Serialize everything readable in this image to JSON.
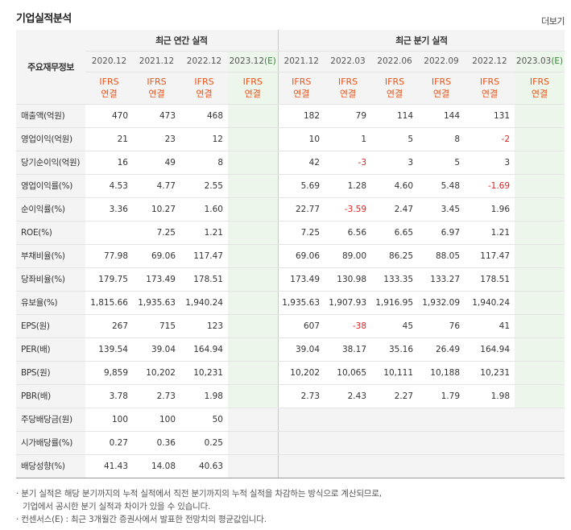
{
  "header": {
    "title": "기업실적분석",
    "more_label": "더보기"
  },
  "columns": {
    "corner_label": "주요재무정보",
    "annual_label": "최근 연간 실적",
    "quarter_label": "최근 분기 실적",
    "periods": [
      "2020.12",
      "2021.12",
      "2022.12",
      "2023.12",
      "2021.12",
      "2022.03",
      "2022.06",
      "2022.09",
      "2022.12",
      "2023.03"
    ],
    "estimate_suffix": "(E)",
    "ifrs_top": "IFRS",
    "ifrs_bottom": "연결"
  },
  "rows": [
    {
      "label": "매출액(억원)",
      "values": [
        "470",
        "473",
        "468",
        "",
        "182",
        "79",
        "114",
        "144",
        "131",
        ""
      ]
    },
    {
      "label": "영업이익(억원)",
      "values": [
        "21",
        "23",
        "12",
        "",
        "10",
        "1",
        "5",
        "8",
        "-2",
        ""
      ]
    },
    {
      "label": "당기순이익(억원)",
      "values": [
        "16",
        "49",
        "8",
        "",
        "42",
        "-3",
        "3",
        "5",
        "3",
        ""
      ]
    },
    {
      "label": "영업이익률(%)",
      "values": [
        "4.53",
        "4.77",
        "2.55",
        "",
        "5.69",
        "1.28",
        "4.60",
        "5.48",
        "-1.69",
        ""
      ]
    },
    {
      "label": "순이익률(%)",
      "values": [
        "3.36",
        "10.27",
        "1.60",
        "",
        "22.77",
        "-3.59",
        "2.47",
        "3.45",
        "1.96",
        ""
      ]
    },
    {
      "label": "ROE(%)",
      "values": [
        "",
        "7.25",
        "1.21",
        "",
        "7.25",
        "6.56",
        "6.65",
        "6.97",
        "1.21",
        ""
      ]
    },
    {
      "label": "부채비율(%)",
      "values": [
        "77.98",
        "69.06",
        "117.47",
        "",
        "69.06",
        "89.00",
        "86.25",
        "88.05",
        "117.47",
        ""
      ]
    },
    {
      "label": "당좌비율(%)",
      "values": [
        "179.75",
        "173.49",
        "178.51",
        "",
        "173.49",
        "130.98",
        "133.35",
        "133.27",
        "178.51",
        ""
      ]
    },
    {
      "label": "유보율(%)",
      "values": [
        "1,815.66",
        "1,935.63",
        "1,940.24",
        "",
        "1,935.63",
        "1,907.93",
        "1,916.95",
        "1,932.09",
        "1,940.24",
        ""
      ]
    },
    {
      "label": "EPS(원)",
      "values": [
        "267",
        "715",
        "123",
        "",
        "607",
        "-38",
        "45",
        "76",
        "41",
        ""
      ]
    },
    {
      "label": "PER(배)",
      "values": [
        "139.54",
        "39.04",
        "164.94",
        "",
        "39.04",
        "38.17",
        "35.16",
        "26.49",
        "164.94",
        ""
      ]
    },
    {
      "label": "BPS(원)",
      "values": [
        "9,859",
        "10,202",
        "10,231",
        "",
        "10,202",
        "10,065",
        "10,111",
        "10,188",
        "10,231",
        ""
      ]
    },
    {
      "label": "PBR(배)",
      "values": [
        "3.78",
        "2.73",
        "1.98",
        "",
        "2.73",
        "2.43",
        "2.27",
        "1.79",
        "1.98",
        ""
      ]
    },
    {
      "label": "주당배당금(원)",
      "values": [
        "100",
        "100",
        "50",
        "",
        "",
        "",
        "",
        "",
        "",
        ""
      ]
    },
    {
      "label": "시가배당률(%)",
      "values": [
        "0.27",
        "0.36",
        "0.25",
        "",
        "",
        "",
        "",
        "",
        "",
        ""
      ]
    },
    {
      "label": "배당성향(%)",
      "values": [
        "41.43",
        "14.08",
        "40.63",
        "",
        "",
        "",
        "",
        "",
        "",
        ""
      ]
    }
  ],
  "notes": [
    "· 분기 실적은 해당 분기까지의 누적 실적에서 직전 분기까지의 누적 실적을 차감하는 방식으로 계산되므로,",
    "기업에서 공시한 분기 실적과 차이가 있을 수 있습니다.",
    "· 컨센서스(E) : 최근 3개월간 증권사에서 발표한 전망치의 평균값입니다."
  ]
}
